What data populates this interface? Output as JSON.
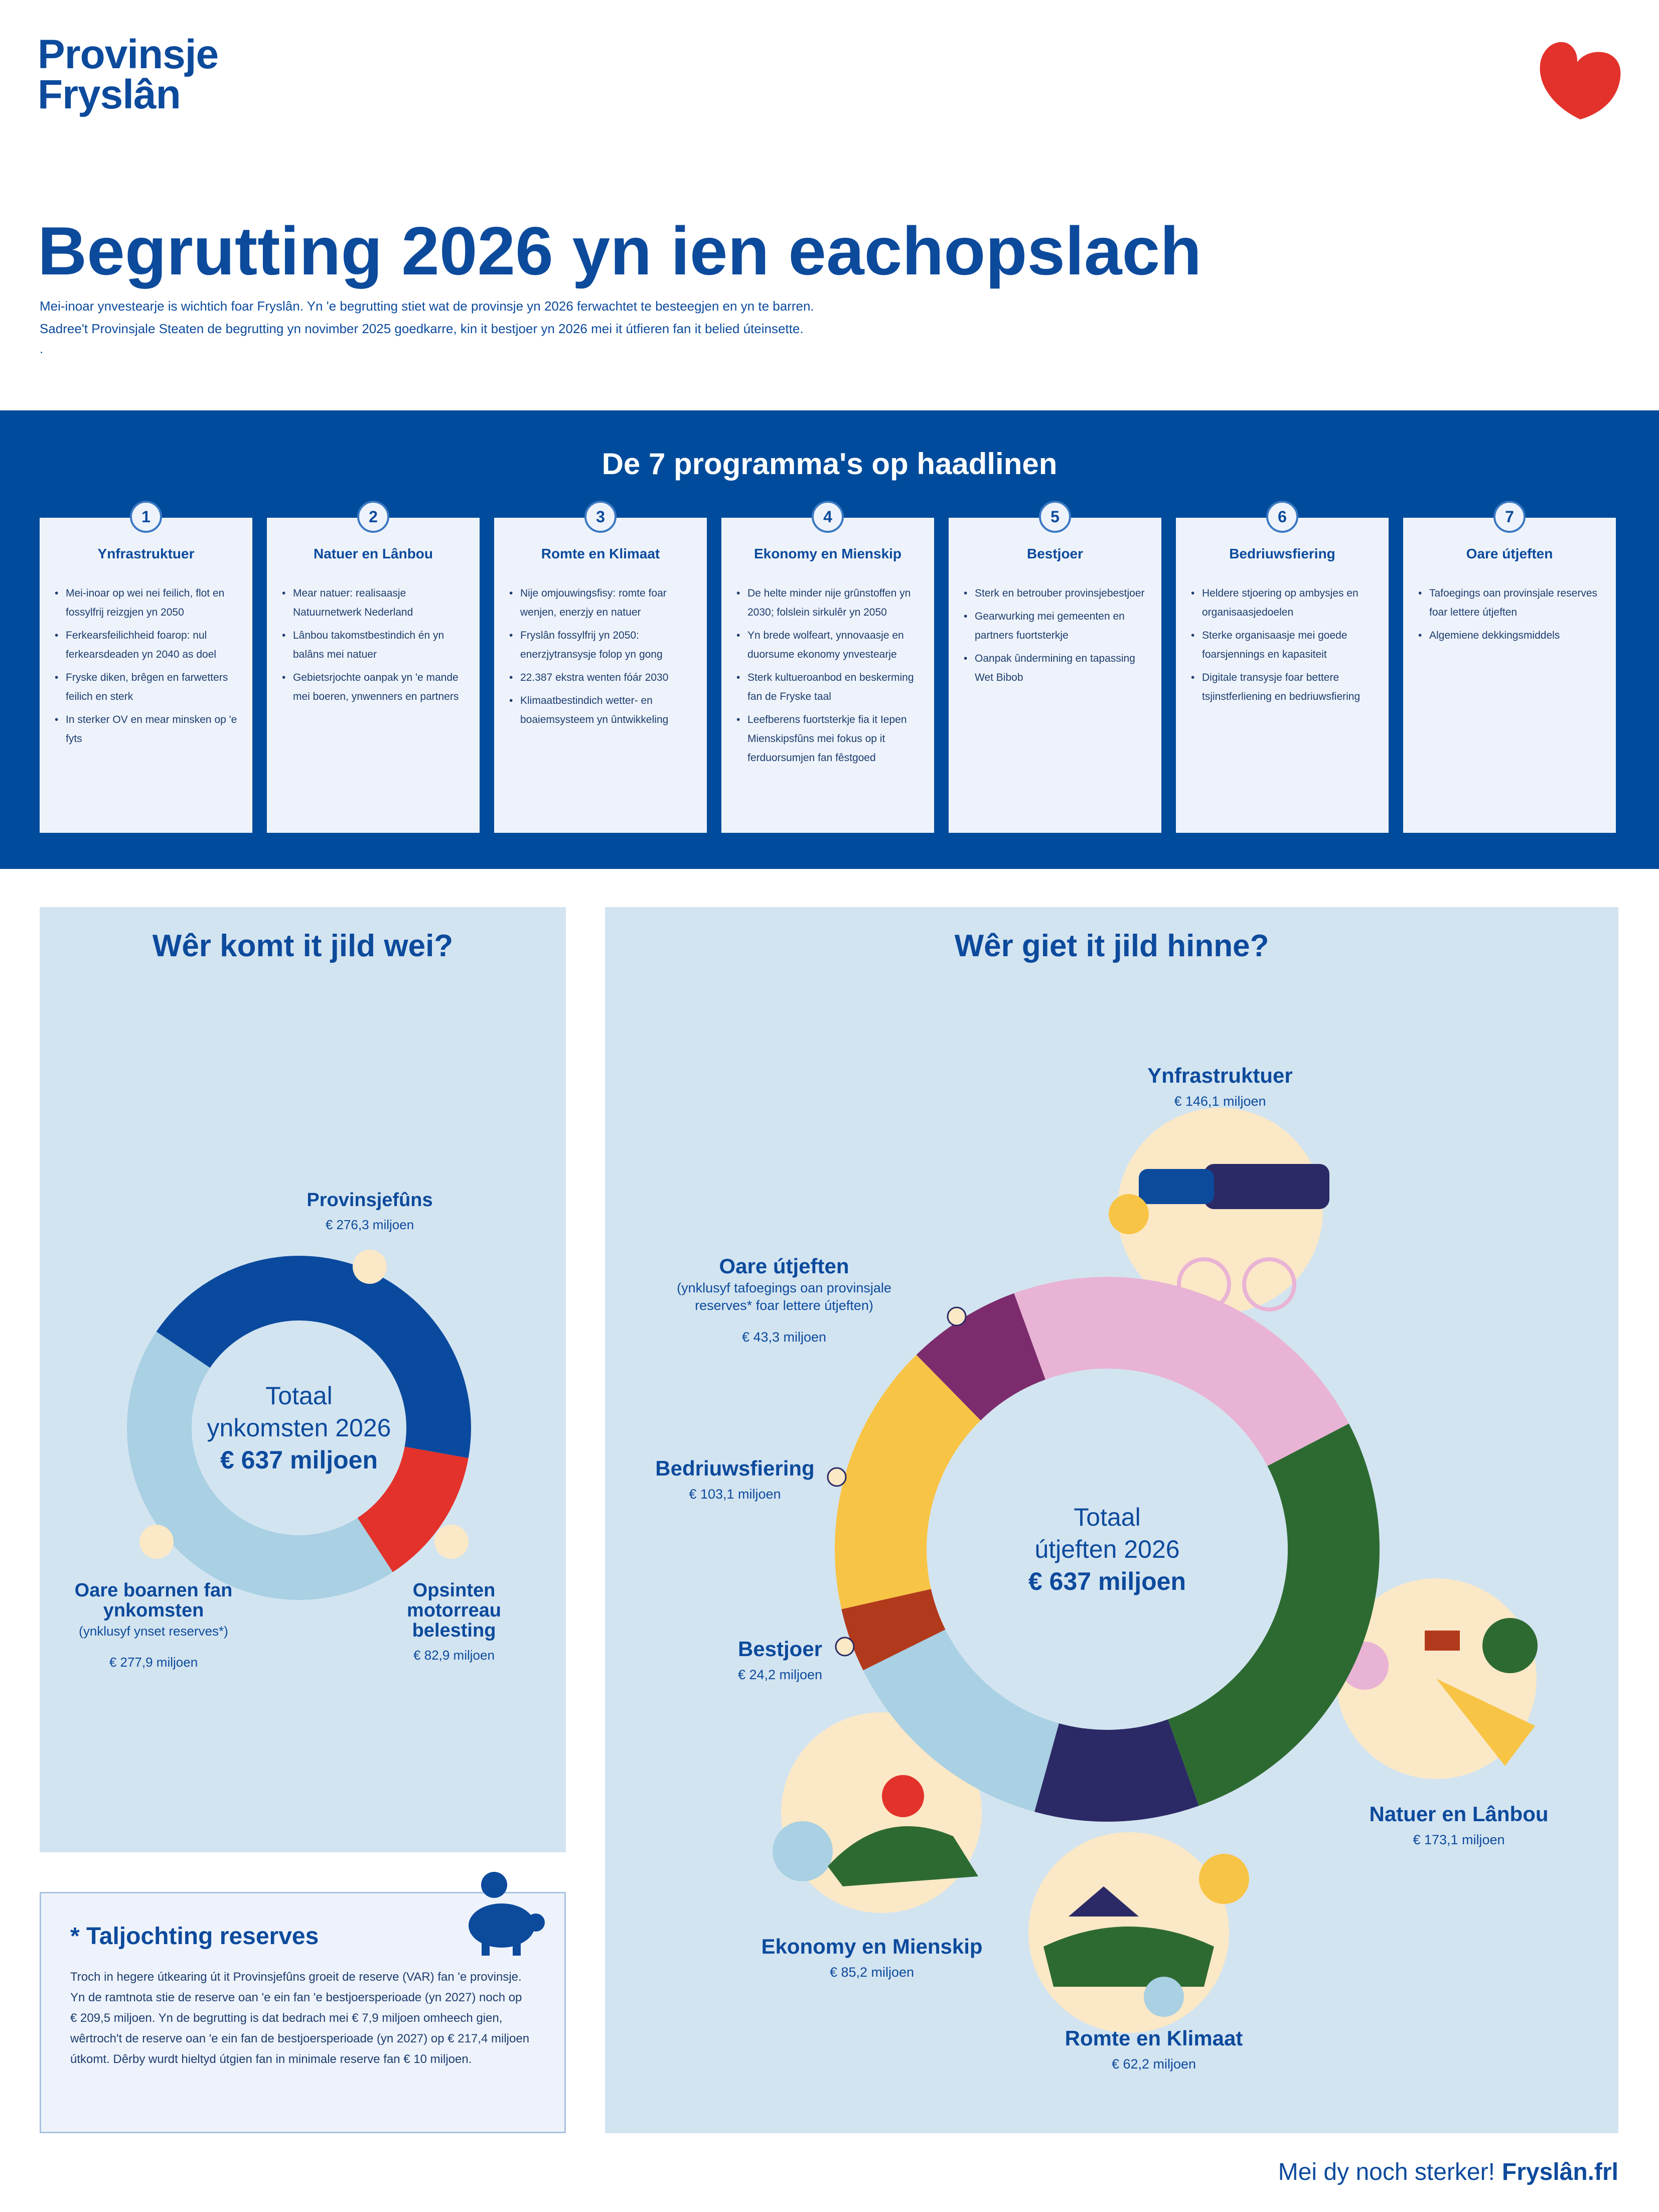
{
  "header": {
    "logo": [
      "Provinsje",
      "Fryslân"
    ],
    "title": "Begrutting 2026 yn ien eachopslach",
    "intro": [
      "Mei-inoar ynvestearje is wichtich foar Fryslân. Yn 'e begrutting stiet wat de provinsje yn 2026 ferwachtet te besteegjen en yn te barren.",
      "Sadree't Provinsjale Steaten de begrutting yn novimber 2025 goedkarre, kin it bestjoer yn 2026 mei it útfieren fan it belied úteinsette.",
      "."
    ]
  },
  "programs": {
    "title": "De 7 programma's op haadlinen",
    "items": [
      {
        "number": 1,
        "title": "Ynfrastruktuer",
        "points": [
          "Mei-inoar op wei nei feilich, flot en fossylfrij reizgjen yn 2050",
          "Ferkearsfeilichheid foarop: nul ferkearsdeaden yn 2040 as doel",
          "Fryske diken, brêgen en farwetters feilich en sterk",
          "In sterker OV en mear minsken op 'e fyts"
        ]
      },
      {
        "number": 2,
        "title": "Natuer en Lânbou",
        "points": [
          "Mear natuer: realisaasje Natuurnetwerk Nederland",
          "Lânbou takomstbestindich én yn balâns mei natuer",
          "Gebietsrjochte oanpak yn 'e mande mei boeren, ynwenners en partners"
        ]
      },
      {
        "number": 3,
        "title": "Romte en Klimaat",
        "points": [
          "Nije omjouwingsfisy: romte foar wenjen, enerzjy en natuer",
          "Fryslân fossylfrij yn 2050: enerzjytransysje folop yn gong",
          "22.387 ekstra wenten fóár 2030",
          "Klimaatbestindich wetter- en boaiemsysteem yn ûntwikkeling"
        ]
      },
      {
        "number": 4,
        "title": "Ekonomy en Mienskip",
        "points": [
          "De helte minder nije grûnstoffen yn 2030; folslein sirkulêr yn 2050",
          "Yn brede wolfeart, ynnovaasje en duorsume ekonomy ynvestearje",
          "Sterk kultueroanbod en beskerming fan de Fryske taal",
          "Leefberens fuortsterkje fia it Iepen Mienskipsfûns mei fokus op it ferduorsumjen fan fêstgoed"
        ]
      },
      {
        "number": 5,
        "title": "Bestjoer",
        "points": [
          "Sterk en betrouber provinsjebestjoer",
          "Gearwurking mei gemeenten en partners fuortsterkje",
          "Oanpak ûndermining en tapassing Wet Bibob"
        ]
      },
      {
        "number": 6,
        "title": "Bedriuwsfiering",
        "points": [
          "Heldere stjoering op ambysjes en organisaasjedoelen",
          "Sterke organisaasje mei goede foarsjennings en kapasiteit",
          "Digitale transysje foar bettere tsjinstferliening en bedriuwsfiering"
        ]
      },
      {
        "number": 7,
        "title": "Oare útjeften",
        "points": [
          "Tafoegings oan provinsjale reserves foar lettere útjeften",
          "Algemiene dekkingsmiddels"
        ]
      }
    ]
  },
  "chart_data": [
    {
      "type": "donut",
      "title": "Wêr komt it jild wei?",
      "center_text": [
        "Totaal",
        "ynkomsten 2026",
        "€ 637 miljoen"
      ],
      "categories": [
        "Provinsjefûns",
        "Opsinten motorreau belesting",
        "Oare boarnen fan ynkomsten"
      ],
      "category_notes": [
        null,
        null,
        "(ynklusyf ynset reserves*)"
      ],
      "values": [
        276.3,
        82.9,
        277.9
      ],
      "value_labels": [
        "€ 276,3 miljoen",
        "€ 82,9 miljoen",
        "€ 277,9 miljoen"
      ],
      "colors": [
        "#0a4a9e",
        "#e3322b",
        "#a9d0e3"
      ]
    },
    {
      "type": "donut",
      "title": "Wêr giet it jild hinne?",
      "center_text": [
        "Totaal",
        "útjeften 2026",
        "€ 637 miljoen"
      ],
      "categories": [
        "Ynfrastruktuer",
        "Natuer en Lânbou",
        "Romte en Klimaat",
        "Ekonomy en Mienskip",
        "Bestjoer",
        "Bedriuwsfiering",
        "Oare útjeften"
      ],
      "category_notes": [
        null,
        null,
        null,
        null,
        null,
        null,
        "(ynklusyf tafoegings oan provinsjale reserves* foar lettere útjeften)"
      ],
      "values": [
        146.1,
        173.1,
        62.2,
        85.2,
        24.2,
        103.1,
        43.3
      ],
      "value_labels": [
        "€ 146,1 miljoen",
        "€ 173,1 miljoen",
        "€ 62,2 miljoen",
        "€ 85,2 miljoen",
        "€ 24,2 miljoen",
        "€ 103,1 miljoen",
        "€ 43,3 miljoen"
      ],
      "colors": [
        "#e9b3d5",
        "#2d6a31",
        "#2b2a66",
        "#a9d0e3",
        "#b23a1c",
        "#f8c445",
        "#7c2c6d"
      ]
    }
  ],
  "reserves_note": {
    "title": "* Taljochting reserves",
    "text": "Troch in hegere útkearing út it Provinsjefûns groeit de reserve (VAR) fan 'e provinsje. Yn de ramtnota stie de reserve oan 'e ein fan 'e bestjoersperioade (yn 2027) noch op € 209,5 miljoen. Yn de begrutting is dat bedrach mei € 7,9 miljoen omheech gien, wêrtroch't de reserve oan 'e ein fan de bestjoersperioade (yn 2027) op € 217,4 miljoen útkomt. Dêrby wurdt hieltyd útgien fan in minimale reserve fan € 10 miljoen."
  },
  "footer": {
    "tagline": "Mei dy noch sterker!",
    "url": "Fryslân.frl"
  }
}
